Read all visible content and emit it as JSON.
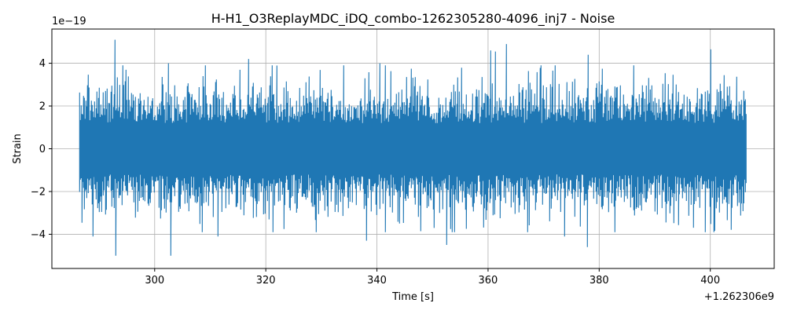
{
  "chart_data": {
    "type": "line",
    "title": "H-H1_O3ReplayMDC_iDQ_combo-1262305280-4096_inj7 - Noise",
    "xlabel": "Time [s]",
    "ylabel": "Strain",
    "x_offset_label": "+1.262306e9",
    "y_scale_label": "1e−19",
    "xlim": [
      281.5,
      411.5
    ],
    "ylim": [
      -5.6,
      5.6
    ],
    "x_ticks": [
      300,
      320,
      340,
      360,
      380,
      400
    ],
    "x_tick_labels": [
      "300",
      "320",
      "340",
      "360",
      "380",
      "400"
    ],
    "y_ticks": [
      -4,
      -2,
      0,
      2,
      4
    ],
    "y_tick_labels": [
      "−4",
      "−2",
      "0",
      "2",
      "4"
    ],
    "grid": true,
    "series": [
      {
        "color": "#1f77b4",
        "x_range": [
          286.5,
          406.5
        ],
        "typical_amplitude": 1.6,
        "peaks": [
          {
            "x": 292.9,
            "y": 5.1
          },
          {
            "x": 293.0,
            "y": -5.0
          },
          {
            "x": 302.9,
            "y": -5.0
          },
          {
            "x": 302.5,
            "y": 4.0
          },
          {
            "x": 316.9,
            "y": 4.2
          },
          {
            "x": 338.2,
            "y": -4.3
          },
          {
            "x": 340.5,
            "y": 4.0
          },
          {
            "x": 352.5,
            "y": -4.5
          },
          {
            "x": 360.5,
            "y": 4.6
          },
          {
            "x": 361.3,
            "y": 4.55
          },
          {
            "x": 363.3,
            "y": 4.9
          },
          {
            "x": 377.9,
            "y": -4.6
          },
          {
            "x": 378.0,
            "y": 4.4
          },
          {
            "x": 400.1,
            "y": 4.65
          },
          {
            "x": 400.6,
            "y": -3.9
          },
          {
            "x": 288.9,
            "y": -4.1
          },
          {
            "x": 311.4,
            "y": -4.1
          },
          {
            "x": 373.8,
            "y": -4.1
          }
        ]
      }
    ]
  }
}
